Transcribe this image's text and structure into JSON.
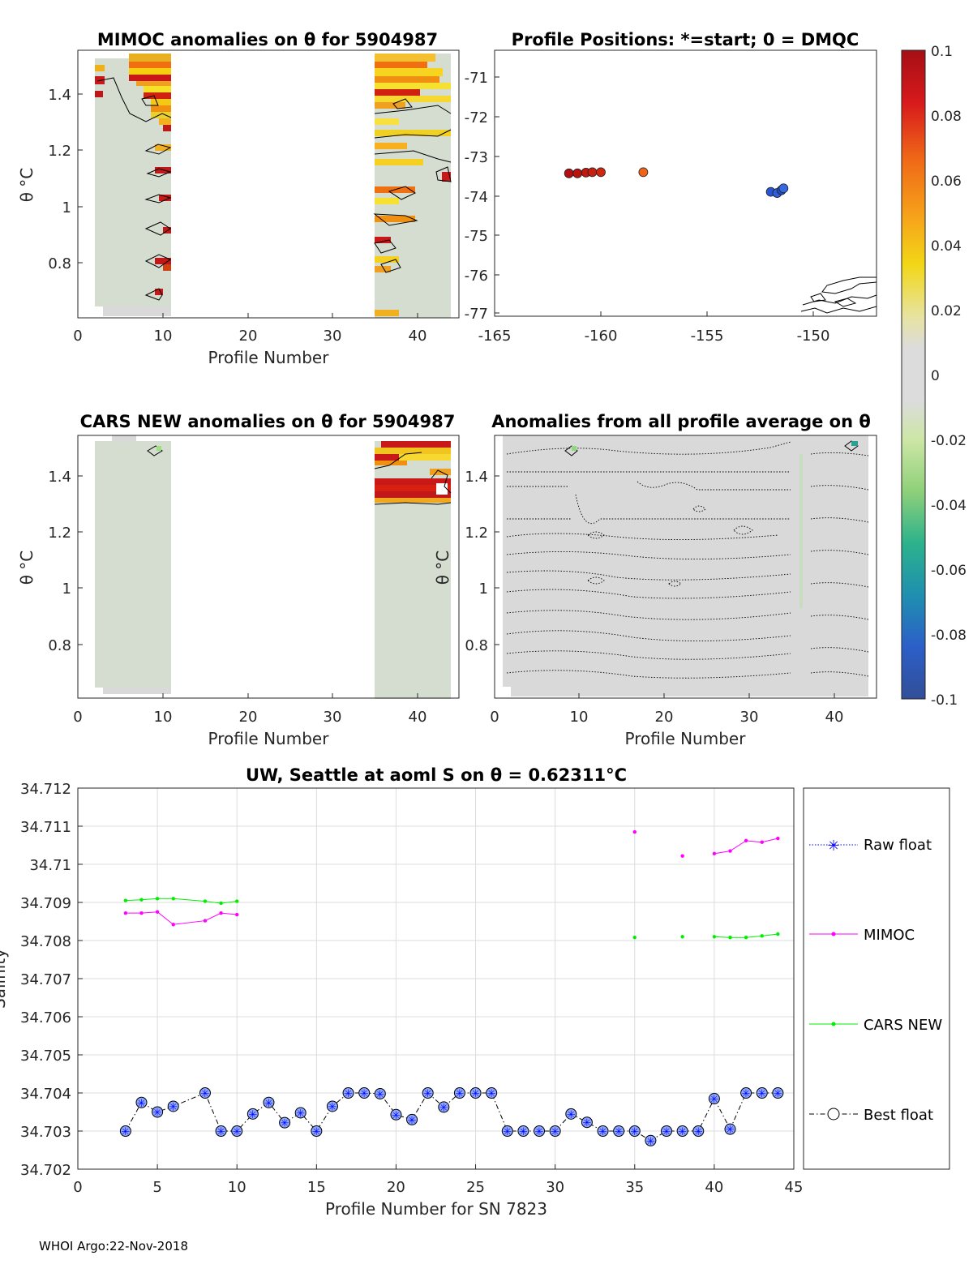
{
  "colors": {
    "grey": "#d9d9d9",
    "grey_green": "#d5ddd0",
    "mimoc": "#ff00ff",
    "cars": "#00ee00",
    "raw": "#0000ff",
    "best_fill": "#8fa8ff",
    "best_line": "#000000"
  },
  "panel1": {
    "title": "MIMOC anomalies on θ  for 5904987",
    "xlabel": "Profile Number",
    "ylabel": "θ °C",
    "x_ticks": [
      "0",
      "10",
      "20",
      "30",
      "40"
    ],
    "y_ticks": [
      "0.8",
      "1",
      "1.2",
      "1.4"
    ]
  },
  "panel2": {
    "title": "Profile Positions: *=start; 0 = DMQC",
    "x_ticks": [
      "-165",
      "-160",
      "-155",
      "-150"
    ],
    "y_ticks": [
      "-71",
      "-72",
      "-73",
      "-74",
      "-75",
      "-76",
      "-77"
    ],
    "positions": [
      {
        "lon": -161.5,
        "lat": -73.45,
        "color": "#b40f10"
      },
      {
        "lon": -161.1,
        "lat": -73.45,
        "color": "#bc1210"
      },
      {
        "lon": -160.7,
        "lat": -73.43,
        "color": "#c21810"
      },
      {
        "lon": -160.4,
        "lat": -73.42,
        "color": "#c8200f"
      },
      {
        "lon": -160.0,
        "lat": -73.42,
        "color": "#cf260e"
      },
      {
        "lon": -158.0,
        "lat": -73.42,
        "color": "#f0641a"
      },
      {
        "lon": -152.0,
        "lat": -73.92,
        "color": "#2855d8"
      },
      {
        "lon": -151.7,
        "lat": -73.95,
        "color": "#2f5fe0"
      },
      {
        "lon": -151.5,
        "lat": -73.88,
        "color": "#1d4ec8"
      },
      {
        "lon": -151.4,
        "lat": -73.83,
        "color": "#3668e0"
      }
    ]
  },
  "colorbar": {
    "ticks": [
      "0.1",
      "0.08",
      "0.06",
      "0.04",
      "0.02",
      "0",
      "-0.02",
      "-0.04",
      "-0.06",
      "-0.08",
      "-0.1"
    ]
  },
  "panel3": {
    "title": "CARS NEW anomalies on θ for 5904987",
    "xlabel": "Profile Number",
    "ylabel": "θ °C",
    "x_ticks": [
      "0",
      "10",
      "20",
      "30",
      "40"
    ],
    "y_ticks": [
      "0.8",
      "1",
      "1.2",
      "1.4"
    ]
  },
  "panel4": {
    "title": "Anomalies from all profile average on θ",
    "xlabel": "Profile Number",
    "ylabel": "θ °C",
    "x_ticks": [
      "0",
      "10",
      "20",
      "30",
      "40"
    ],
    "y_ticks": [
      "0.8",
      "1",
      "1.2",
      "1.4"
    ]
  },
  "chart_data": {
    "type": "line",
    "title": "UW, Seattle at aoml S on θ = 0.62311°C",
    "xlabel": "Profile Number for SN 7823",
    "ylabel": "Salinity",
    "xlim": [
      0,
      45
    ],
    "ylim": [
      34.702,
      34.712
    ],
    "x_ticks": [
      "0",
      "5",
      "10",
      "15",
      "20",
      "25",
      "30",
      "35",
      "40",
      "45"
    ],
    "y_ticks": [
      "34.702",
      "34.703",
      "34.704",
      "34.705",
      "34.706",
      "34.707",
      "34.708",
      "34.709",
      "34.71",
      "34.711",
      "34.712"
    ],
    "legend": [
      "Raw float",
      "MIMOC",
      "CARS NEW",
      "Best float"
    ],
    "series": [
      {
        "name": "Best float",
        "x": [
          3,
          4,
          5,
          6,
          8,
          9,
          10,
          11,
          12,
          13,
          14,
          15,
          16,
          17,
          18,
          19,
          20,
          21,
          22,
          23,
          24,
          25,
          26,
          27,
          28,
          29,
          30,
          31,
          32,
          33,
          34,
          35,
          36,
          37,
          38,
          39,
          40,
          41,
          42,
          43,
          44
        ],
        "values": [
          34.703,
          34.70375,
          34.7035,
          34.70365,
          34.704,
          34.703,
          34.703,
          34.70345,
          34.70375,
          34.70322,
          34.70348,
          34.703,
          34.70365,
          34.704,
          34.704,
          34.70398,
          34.70343,
          34.7033,
          34.704,
          34.70363,
          34.704,
          34.704,
          34.704,
          34.703,
          34.703,
          34.703,
          34.703,
          34.70345,
          34.70323,
          34.703,
          34.703,
          34.703,
          34.70275,
          34.703,
          34.703,
          34.703,
          34.70385,
          34.70305,
          34.704,
          34.704,
          34.704
        ]
      },
      {
        "name": "MIMOC",
        "segments": [
          {
            "x": [
              3,
              4,
              5,
              6,
              8,
              9,
              10
            ],
            "values": [
              34.70872,
              34.70872,
              34.70875,
              34.70842,
              34.70852,
              34.70872,
              34.70868
            ]
          },
          {
            "x": [
              35
            ],
            "values": [
              34.71085
            ]
          },
          {
            "x": [
              38
            ],
            "values": [
              34.71022
            ]
          },
          {
            "x": [
              40,
              41,
              42,
              43,
              44
            ],
            "values": [
              34.71028,
              34.71035,
              34.71062,
              34.71058,
              34.71068
            ]
          }
        ]
      },
      {
        "name": "CARS NEW",
        "segments": [
          {
            "x": [
              3,
              4,
              5,
              6,
              8,
              9,
              10
            ],
            "values": [
              34.70905,
              34.70907,
              34.7091,
              34.7091,
              34.70903,
              34.70898,
              34.70903
            ]
          },
          {
            "x": [
              35
            ],
            "values": [
              34.70808
            ]
          },
          {
            "x": [
              38
            ],
            "values": [
              34.7081
            ]
          },
          {
            "x": [
              40,
              41,
              42,
              43,
              44
            ],
            "values": [
              34.7081,
              34.70808,
              34.70808,
              34.70812,
              34.70817
            ]
          }
        ]
      }
    ]
  },
  "footer": "WHOI Argo:22-Nov-2018"
}
